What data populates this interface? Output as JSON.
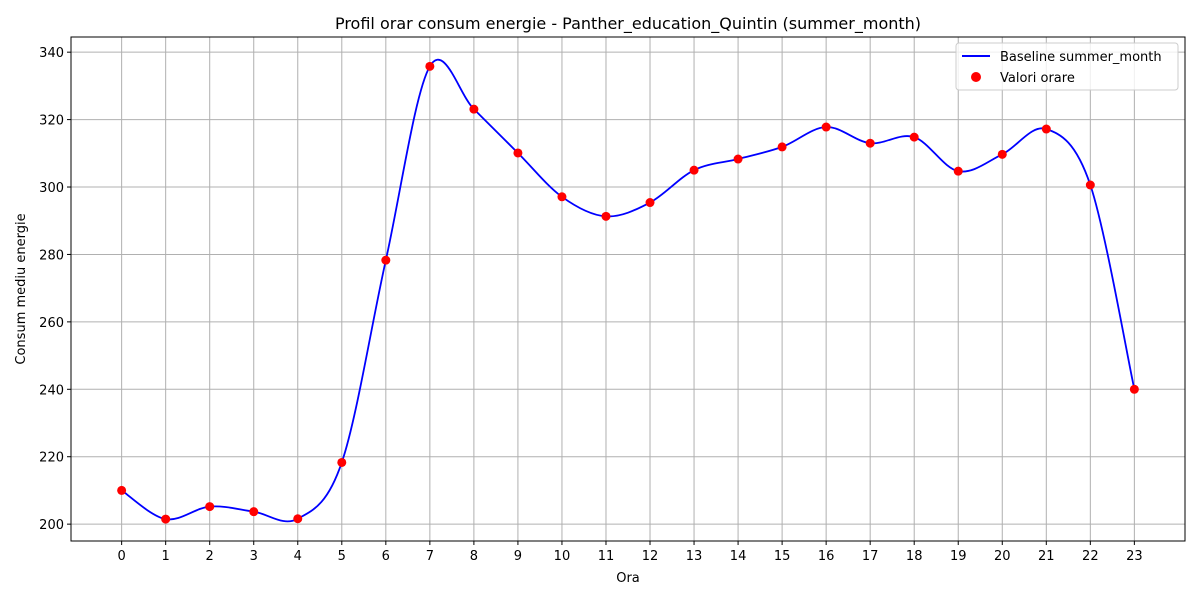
{
  "chart_data": {
    "type": "line",
    "title": "Profil orar consum energie - Panther_education_Quintin (summer_month)",
    "xlabel": "Ora",
    "ylabel": "Consum mediu energie",
    "x": [
      0,
      1,
      2,
      3,
      4,
      5,
      6,
      7,
      8,
      9,
      10,
      11,
      12,
      13,
      14,
      15,
      16,
      17,
      18,
      19,
      20,
      21,
      22,
      23
    ],
    "x_tick_labels": [
      "0",
      "1",
      "2",
      "3",
      "4",
      "5",
      "6",
      "7",
      "8",
      "9",
      "10",
      "11",
      "12",
      "13",
      "14",
      "15",
      "16",
      "17",
      "18",
      "19",
      "20",
      "21",
      "22",
      "23"
    ],
    "y_ticks": [
      200,
      220,
      240,
      260,
      280,
      300,
      320,
      340
    ],
    "y_tick_labels": [
      "200",
      "220",
      "240",
      "260",
      "280",
      "300",
      "320",
      "340"
    ],
    "xlim": [
      -1.15,
      24.15
    ],
    "ylim": [
      195.0,
      344.5
    ],
    "grid": true,
    "legend_position": "upper right",
    "series": [
      {
        "name": "Baseline summer_month",
        "kind": "smooth-line",
        "color": "#0000ff",
        "values": [
          210.0,
          201.5,
          205.2,
          203.7,
          201.6,
          218.3,
          278.3,
          335.8,
          323.1,
          310.1,
          297.1,
          291.3,
          295.4,
          305.0,
          308.3,
          311.9,
          317.8,
          313.0,
          314.8,
          304.7,
          309.7,
          317.2,
          300.6,
          240.0
        ]
      },
      {
        "name": "Valori orare",
        "kind": "scatter",
        "color": "#ff0000",
        "values": [
          210.0,
          201.5,
          205.2,
          203.7,
          201.6,
          218.3,
          278.3,
          335.8,
          323.1,
          310.1,
          297.1,
          291.3,
          295.4,
          305.0,
          308.3,
          311.9,
          317.8,
          313.0,
          314.8,
          304.7,
          309.7,
          317.2,
          300.6,
          240.0
        ]
      }
    ]
  }
}
